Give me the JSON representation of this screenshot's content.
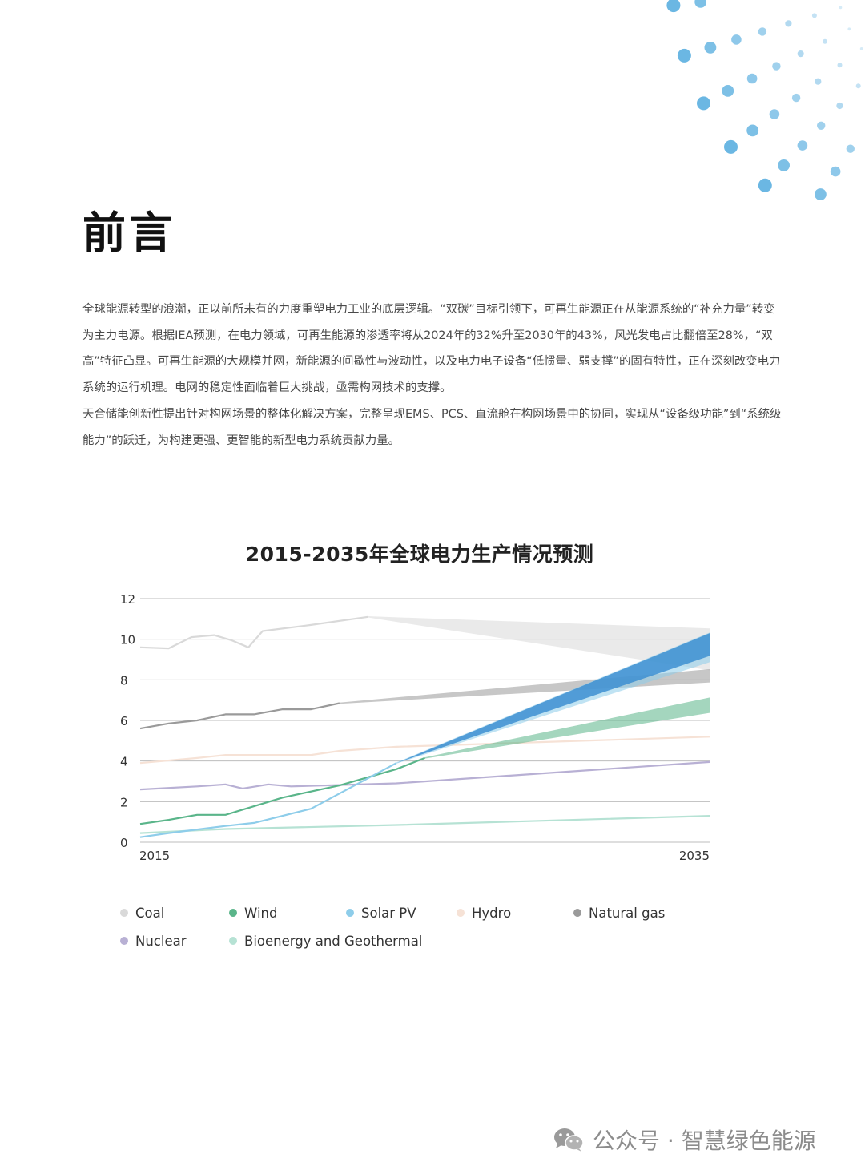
{
  "page": {
    "heading": "前言",
    "paragraphs": [
      "全球能源转型的浪潮，正以前所未有的力度重塑电力工业的底层逻辑。“双碳”目标引领下，可再生能源正在从能源系统的“补充力量”转变为主力电源。根据IEA预测，在电力领域，可再生能源的渗透率将从2024年的32%升至2030年的43%，风光发电占比翻倍至28%，“双高”特征凸显。可再生能源的大规模并网，新能源的间歇性与波动性，以及电力电子设备“低惯量、弱支撑”的固有特性，正在深刻改变电力系统的运行机理。电网的稳定性面临着巨大挑战，亟需构网技术的支撑。",
      "天合储能创新性提出针对构网场景的整体化解决方案，完整呈现EMS、PCS、直流舱在构网场景中的协同，实现从“设备级功能”到“系统级能力”的跃迁，为构建更强、更智能的新型电力系统贡献力量。"
    ],
    "watermark": {
      "text": "公众号 · 智慧绿色能源",
      "icon": "wechat-icon"
    }
  },
  "colors": {
    "dots": "#6bb7e3",
    "coal": "#d9d9d9",
    "wind": "#5ab58a",
    "solar": "#8ecdea",
    "hydro": "#f6e2d6",
    "gas": "#9a9a9a",
    "nuclear": "#b8b0d4",
    "bio": "#b6e2d4",
    "grid": "#bdbdbd"
  },
  "chart_data": {
    "type": "line",
    "title": "2015-2035年全球电力生产情况预测",
    "xlabel": "",
    "ylabel": "",
    "xlim": [
      2015,
      2035
    ],
    "ylim": [
      0,
      12
    ],
    "x_tick_labels": [
      "2015",
      "2035"
    ],
    "y_ticks": [
      0,
      2,
      4,
      6,
      8,
      10,
      12
    ],
    "grid": true,
    "legend_position": "bottom",
    "series": [
      {
        "name": "Coal",
        "color": "#d9d9d9",
        "points": [
          [
            2015,
            9.6
          ],
          [
            2016,
            9.55
          ],
          [
            2016.8,
            10.1
          ],
          [
            2017.6,
            10.2
          ],
          [
            2018.2,
            9.95
          ],
          [
            2018.8,
            9.6
          ],
          [
            2019.3,
            10.4
          ],
          [
            2021,
            10.7
          ],
          [
            2023,
            11.1
          ]
        ],
        "band": {
          "start": 2023,
          "end": 2035,
          "low": 8.5,
          "high": 10.5
        }
      },
      {
        "name": "Wind",
        "color": "#5ab58a",
        "points": [
          [
            2015,
            0.9
          ],
          [
            2016,
            1.1
          ],
          [
            2017,
            1.35
          ],
          [
            2018,
            1.35
          ],
          [
            2020,
            2.2
          ],
          [
            2022,
            2.8
          ],
          [
            2024,
            3.6
          ],
          [
            2025,
            4.15
          ]
        ],
        "band": {
          "start": 2025,
          "end": 2035,
          "low": 6.4,
          "high": 7.1
        }
      },
      {
        "name": "Solar PV",
        "color": "#8ecdea",
        "points": [
          [
            2015,
            0.25
          ],
          [
            2016,
            0.45
          ],
          [
            2018,
            0.8
          ],
          [
            2019,
            0.95
          ],
          [
            2021,
            1.65
          ],
          [
            2022,
            2.4
          ],
          [
            2024,
            3.9
          ]
        ],
        "band": {
          "start": 2024,
          "end": 2035,
          "low": 8.9,
          "high": 10.3
        }
      },
      {
        "name": "Hydro",
        "color": "#f6e2d6",
        "points": [
          [
            2015,
            3.9
          ],
          [
            2017,
            4.15
          ],
          [
            2018,
            4.3
          ],
          [
            2021,
            4.3
          ],
          [
            2022,
            4.5
          ],
          [
            2024,
            4.7
          ],
          [
            2035,
            5.2
          ]
        ]
      },
      {
        "name": "Natural gas",
        "color": "#9a9a9a",
        "points": [
          [
            2015,
            5.6
          ],
          [
            2016,
            5.85
          ],
          [
            2017,
            6.0
          ],
          [
            2018,
            6.3
          ],
          [
            2019,
            6.3
          ],
          [
            2020,
            6.55
          ],
          [
            2021,
            6.55
          ],
          [
            2022,
            6.85
          ]
        ],
        "band": {
          "start": 2022,
          "end": 2035,
          "low": 7.9,
          "high": 8.5
        }
      },
      {
        "name": "Nuclear",
        "color": "#b8b0d4",
        "points": [
          [
            2015,
            2.6
          ],
          [
            2017,
            2.75
          ],
          [
            2018,
            2.85
          ],
          [
            2018.6,
            2.65
          ],
          [
            2019.5,
            2.85
          ],
          [
            2020.3,
            2.75
          ],
          [
            2024,
            2.9
          ],
          [
            2035,
            3.95
          ]
        ]
      },
      {
        "name": "Bioenergy and Geothermal",
        "color": "#b6e2d4",
        "points": [
          [
            2015,
            0.45
          ],
          [
            2018,
            0.65
          ],
          [
            2024,
            0.85
          ],
          [
            2035,
            1.3
          ]
        ]
      }
    ]
  }
}
